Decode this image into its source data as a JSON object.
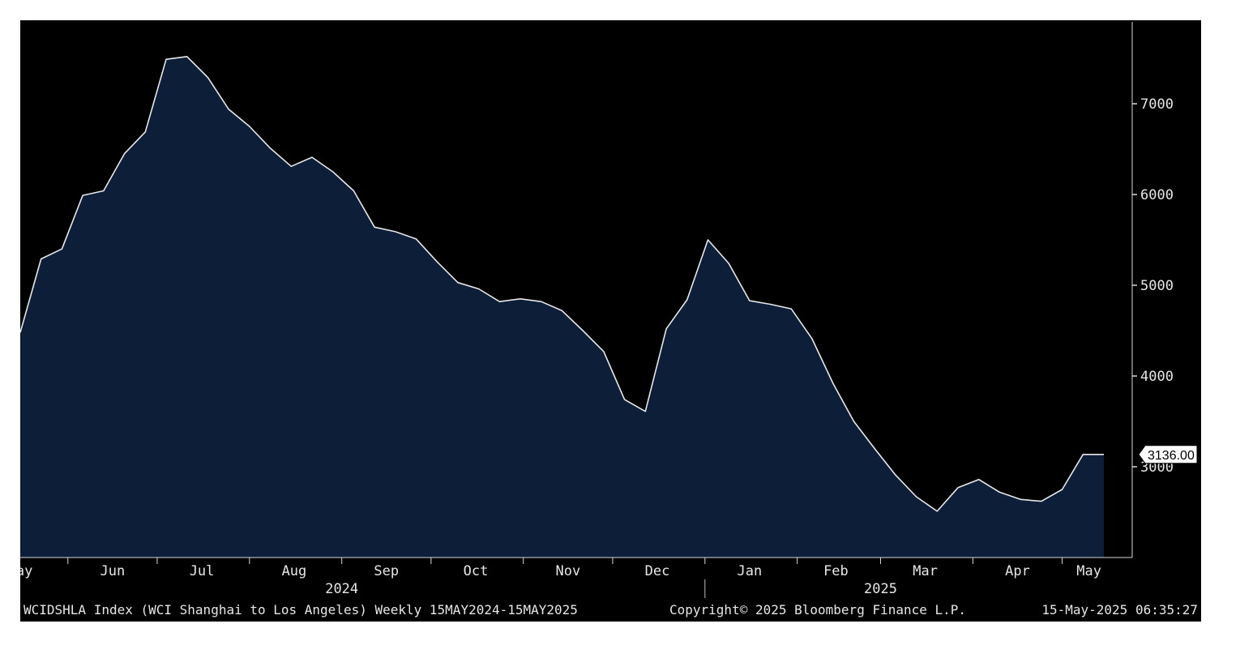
{
  "chart_data": {
    "type": "area",
    "x": [
      "2024-05-16",
      "2024-05-23",
      "2024-05-30",
      "2024-06-06",
      "2024-06-13",
      "2024-06-20",
      "2024-06-27",
      "2024-07-04",
      "2024-07-11",
      "2024-07-18",
      "2024-07-25",
      "2024-08-01",
      "2024-08-08",
      "2024-08-15",
      "2024-08-22",
      "2024-08-29",
      "2024-09-05",
      "2024-09-12",
      "2024-09-19",
      "2024-09-26",
      "2024-10-03",
      "2024-10-10",
      "2024-10-17",
      "2024-10-24",
      "2024-10-31",
      "2024-11-07",
      "2024-11-14",
      "2024-11-21",
      "2024-11-28",
      "2024-12-05",
      "2024-12-12",
      "2024-12-19",
      "2024-12-26",
      "2025-01-02",
      "2025-01-09",
      "2025-01-16",
      "2025-01-23",
      "2025-01-30",
      "2025-02-06",
      "2025-02-13",
      "2025-02-20",
      "2025-02-27",
      "2025-03-06",
      "2025-03-13",
      "2025-03-20",
      "2025-03-27",
      "2025-04-03",
      "2025-04-10",
      "2025-04-17",
      "2025-04-24",
      "2025-05-01",
      "2025-05-08",
      "2025-05-15"
    ],
    "values": [
      4480,
      5290,
      5400,
      5990,
      6040,
      6450,
      6690,
      7490,
      7520,
      7290,
      6940,
      6750,
      6510,
      6310,
      6410,
      6250,
      6040,
      5640,
      5590,
      5510,
      5260,
      5030,
      4960,
      4820,
      4850,
      4820,
      4720,
      4500,
      4270,
      3740,
      3610,
      4520,
      4840,
      5500,
      5240,
      4830,
      4790,
      4740,
      4410,
      3920,
      3500,
      3200,
      2910,
      2670,
      2510,
      2770,
      2860,
      2720,
      2640,
      2620,
      2750,
      3136,
      3136
    ],
    "ylim": [
      2000,
      7920
    ],
    "yticks": [
      3000,
      4000,
      5000,
      6000,
      7000
    ],
    "ytick_labels": [
      "3000",
      "4000",
      "5000",
      "6000",
      "7000"
    ],
    "month_ticks": [
      "2024-05-12",
      "2024-06-01",
      "2024-07-01",
      "2024-08-01",
      "2024-09-01",
      "2024-10-01",
      "2024-11-01",
      "2024-12-01",
      "2025-01-01",
      "2025-02-01",
      "2025-03-01",
      "2025-04-01",
      "2025-05-01"
    ],
    "month_labels": [
      {
        "date": "2024-05-16",
        "label": "May"
      },
      {
        "date": "2024-06-16",
        "label": "Jun"
      },
      {
        "date": "2024-07-16",
        "label": "Jul"
      },
      {
        "date": "2024-08-16",
        "label": "Aug"
      },
      {
        "date": "2024-09-16",
        "label": "Sep"
      },
      {
        "date": "2024-10-16",
        "label": "Oct"
      },
      {
        "date": "2024-11-16",
        "label": "Nov"
      },
      {
        "date": "2024-12-16",
        "label": "Dec"
      },
      {
        "date": "2025-01-16",
        "label": "Jan"
      },
      {
        "date": "2025-02-14",
        "label": "Feb"
      },
      {
        "date": "2025-03-16",
        "label": "Mar"
      },
      {
        "date": "2025-04-16",
        "label": "Apr"
      },
      {
        "date": "2025-05-10",
        "label": "May"
      }
    ],
    "year_labels": [
      {
        "date": "2024-09-01",
        "label": "2024"
      },
      {
        "date": "2025-03-01",
        "label": "2025"
      }
    ],
    "year_divider": "2025-01-01",
    "last_value_label": "3136.00",
    "fill_color": "#0c1e38",
    "line_color": "#e8e8e8",
    "background_color": "#000000"
  },
  "footer": {
    "series_desc": "WCIDSHLA Index (WCI Shanghai to Los Angeles)  Weekly 15MAY2024-15MAY2025",
    "copyright": "Copyright© 2025 Bloomberg Finance L.P.",
    "timestamp": "15-May-2025 06:35:27"
  }
}
